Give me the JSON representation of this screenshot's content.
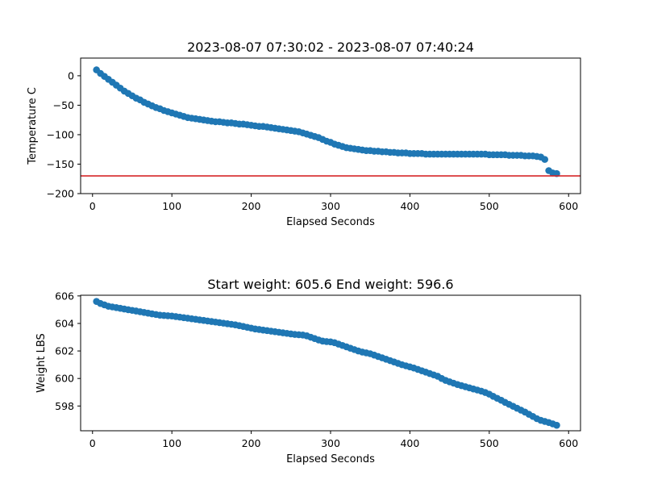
{
  "chart_data": [
    {
      "type": "scatter",
      "title": "2023-08-07 07:30:02 - 2023-08-07 07:40:24",
      "xlabel": "Elapsed Seconds",
      "ylabel": "Temperature C",
      "xlim": [
        -15,
        615
      ],
      "ylim": [
        -200,
        30
      ],
      "xticks": [
        0,
        100,
        200,
        300,
        400,
        500,
        600
      ],
      "yticks": [
        -200,
        -150,
        -100,
        -50,
        0
      ],
      "grid": false,
      "legend": "none",
      "marker_color": "#1f77b4",
      "reference_line": {
        "y": -170,
        "color": "#d62728"
      },
      "series": [
        {
          "x": [
            5,
            10,
            15,
            20,
            25,
            30,
            35,
            40,
            45,
            50,
            55,
            60,
            65,
            70,
            75,
            80,
            85,
            90,
            95,
            100,
            105,
            110,
            115,
            120,
            125,
            130,
            135,
            140,
            145,
            150,
            155,
            160,
            165,
            170,
            175,
            180,
            185,
            190,
            195,
            200,
            205,
            210,
            215,
            220,
            225,
            230,
            235,
            240,
            245,
            250,
            255,
            260,
            265,
            270,
            275,
            280,
            285,
            290,
            295,
            300,
            305,
            310,
            315,
            320,
            325,
            330,
            335,
            340,
            345,
            350,
            355,
            360,
            365,
            370,
            375,
            380,
            385,
            390,
            395,
            400,
            405,
            410,
            415,
            420,
            425,
            430,
            435,
            440,
            445,
            450,
            455,
            460,
            465,
            470,
            475,
            480,
            485,
            490,
            495,
            500,
            505,
            510,
            515,
            520,
            525,
            530,
            535,
            540,
            545,
            550,
            555,
            560,
            565,
            570,
            575,
            580,
            585
          ],
          "y": [
            10,
            4,
            -1,
            -6,
            -11,
            -16,
            -21,
            -26,
            -30,
            -34,
            -38,
            -41,
            -45,
            -48,
            -51,
            -54,
            -56,
            -59,
            -61,
            -63,
            -65,
            -67,
            -69,
            -71,
            -72,
            -73,
            -74,
            -75,
            -76,
            -77,
            -78,
            -78,
            -79,
            -80,
            -80,
            -81,
            -82,
            -82,
            -83,
            -84,
            -85,
            -86,
            -86,
            -87,
            -88,
            -89,
            -90,
            -91,
            -92,
            -93,
            -94,
            -95,
            -97,
            -99,
            -101,
            -103,
            -105,
            -108,
            -111,
            -113,
            -116,
            -118,
            -120,
            -122,
            -123,
            -124,
            -125,
            -126,
            -127,
            -127,
            -128,
            -128,
            -129,
            -129,
            -130,
            -130,
            -131,
            -131,
            -131,
            -132,
            -132,
            -132,
            -132,
            -133,
            -133,
            -133,
            -133,
            -133,
            -133,
            -133,
            -133,
            -133,
            -133,
            -133,
            -133,
            -133,
            -133,
            -133,
            -133,
            -134,
            -134,
            -134,
            -134,
            -134,
            -135,
            -135,
            -135,
            -135,
            -136,
            -136,
            -136,
            -137,
            -138,
            -142,
            -161,
            -165,
            -166
          ]
        }
      ]
    },
    {
      "type": "scatter",
      "title": "Start weight: 605.6 End weight: 596.6",
      "xlabel": "Elapsed Seconds",
      "ylabel": "Weight LBS",
      "xlim": [
        -15,
        615
      ],
      "ylim": [
        596.2,
        606.05
      ],
      "xticks": [
        0,
        100,
        200,
        300,
        400,
        500,
        600
      ],
      "yticks": [
        598,
        600,
        602,
        604,
        606
      ],
      "grid": false,
      "legend": "none",
      "marker_color": "#1f77b4",
      "series": [
        {
          "x": [
            5,
            10,
            15,
            20,
            25,
            30,
            35,
            40,
            45,
            50,
            55,
            60,
            65,
            70,
            75,
            80,
            85,
            90,
            95,
            100,
            105,
            110,
            115,
            120,
            125,
            130,
            135,
            140,
            145,
            150,
            155,
            160,
            165,
            170,
            175,
            180,
            185,
            190,
            195,
            200,
            205,
            210,
            215,
            220,
            225,
            230,
            235,
            240,
            245,
            250,
            255,
            260,
            265,
            270,
            275,
            280,
            285,
            290,
            295,
            300,
            305,
            310,
            315,
            320,
            325,
            330,
            335,
            340,
            345,
            350,
            355,
            360,
            365,
            370,
            375,
            380,
            385,
            390,
            395,
            400,
            405,
            410,
            415,
            420,
            425,
            430,
            435,
            440,
            445,
            450,
            455,
            460,
            465,
            470,
            475,
            480,
            485,
            490,
            495,
            500,
            505,
            510,
            515,
            520,
            525,
            530,
            535,
            540,
            545,
            550,
            555,
            560,
            565,
            570,
            575,
            580,
            585
          ],
          "y": [
            605.6,
            605.45,
            605.35,
            605.25,
            605.2,
            605.15,
            605.1,
            605.05,
            605.0,
            604.95,
            604.9,
            604.85,
            604.8,
            604.75,
            604.7,
            604.65,
            604.6,
            604.58,
            604.56,
            604.54,
            604.5,
            604.46,
            604.42,
            604.38,
            604.34,
            604.3,
            604.26,
            604.22,
            604.18,
            604.14,
            604.1,
            604.06,
            604.02,
            603.98,
            603.94,
            603.9,
            603.84,
            603.78,
            603.72,
            603.66,
            603.6,
            603.56,
            603.52,
            603.48,
            603.44,
            603.4,
            603.36,
            603.32,
            603.28,
            603.24,
            603.2,
            603.18,
            603.16,
            603.1,
            603.0,
            602.9,
            602.8,
            602.72,
            602.68,
            602.66,
            602.6,
            602.5,
            602.4,
            602.3,
            602.2,
            602.1,
            602.0,
            601.92,
            601.86,
            601.8,
            601.7,
            601.6,
            601.5,
            601.4,
            601.3,
            601.2,
            601.1,
            601.0,
            600.92,
            600.84,
            600.76,
            600.66,
            600.56,
            600.46,
            600.36,
            600.26,
            600.16,
            600.0,
            599.86,
            599.76,
            599.66,
            599.56,
            599.48,
            599.4,
            599.32,
            599.24,
            599.16,
            599.08,
            598.98,
            598.86,
            598.7,
            598.56,
            598.42,
            598.26,
            598.12,
            597.98,
            597.84,
            597.7,
            597.56,
            597.4,
            597.24,
            597.08,
            596.96,
            596.88,
            596.8,
            596.7,
            596.6
          ]
        }
      ]
    }
  ]
}
